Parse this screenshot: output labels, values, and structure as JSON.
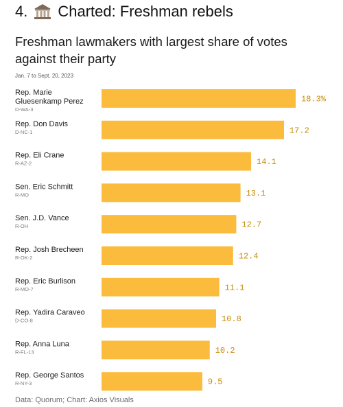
{
  "header": {
    "number": "4.",
    "icon": "government-building-icon",
    "text": "Charted: Freshman rebels"
  },
  "footer": {
    "source": "Data: Quorum; Chart: Axios Visuals"
  },
  "colors": {
    "bar": "#fbbb3d",
    "value_label": "#c98a06"
  },
  "chart_data": {
    "type": "bar",
    "orientation": "horizontal",
    "title": "Freshman lawmakers with largest share of votes against their party",
    "subtitle": "Jan. 7 to Sept. 20, 2023",
    "xlabel": "",
    "ylabel": "",
    "xlim": [
      0,
      18.3
    ],
    "grid": false,
    "categories": [
      "Rep. Marie Gluesenkamp Perez",
      "Rep. Don Davis",
      "Rep. Eli Crane",
      "Sen. Eric Schmitt",
      "Sen. J.D. Vance",
      "Rep. Josh Brecheen",
      "Rep. Eric Burlison",
      "Rep. Yadira Caraveo",
      "Rep. Anna Luna",
      "Rep. George Santos"
    ],
    "category_subtitles": [
      "D-WA-3",
      "D-NC-1",
      "R-AZ-2",
      "R-MO",
      "R-OH",
      "R-OK-2",
      "R-MO-7",
      "D-CO-8",
      "R-FL-13",
      "R-NY-3"
    ],
    "values": [
      18.3,
      17.2,
      14.1,
      13.1,
      12.7,
      12.4,
      11.1,
      10.8,
      10.2,
      9.5
    ],
    "value_labels": [
      "18.3%",
      "17.2",
      "14.1",
      "13.1",
      "12.7",
      "12.4",
      "11.1",
      "10.8",
      "10.2",
      "9.5"
    ]
  }
}
